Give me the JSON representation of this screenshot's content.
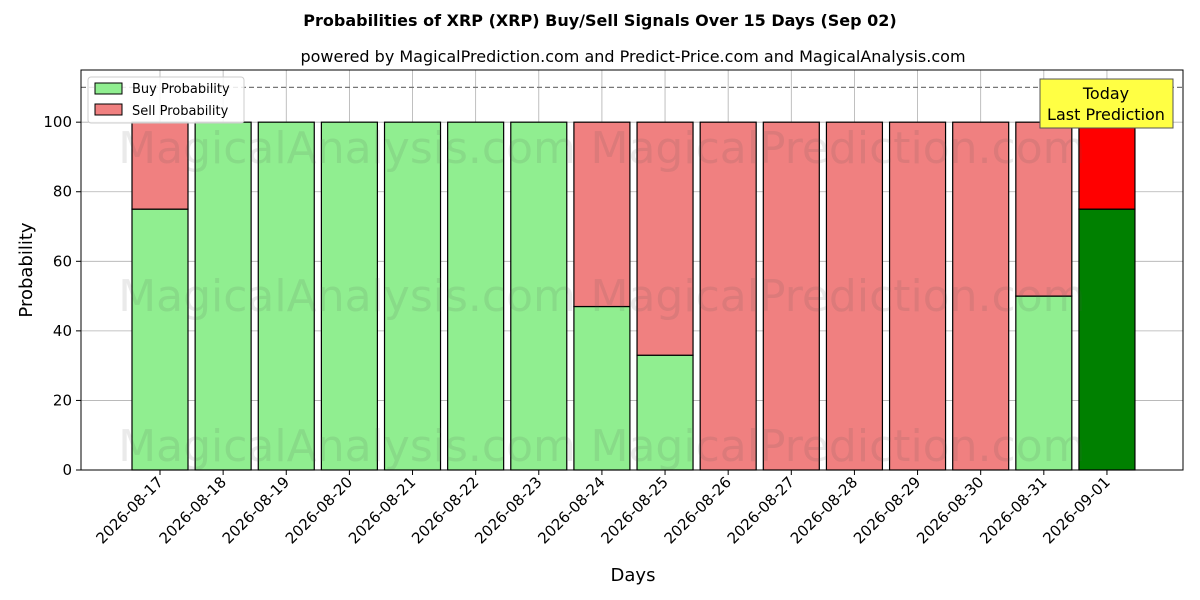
{
  "chart_data": {
    "type": "bar",
    "stacked": true,
    "title": "Probabilities of XRP (XRP) Buy/Sell Signals Over 15 Days (Sep 02)",
    "subtitle": "powered by MagicalPrediction.com and Predict-Price.com and MagicalAnalysis.com",
    "xlabel": "Days",
    "ylabel": "Probability",
    "ylim": [
      0,
      115
    ],
    "yticks": [
      0,
      20,
      40,
      60,
      80,
      100
    ],
    "reference_line": 110,
    "grid": true,
    "legend_position": "top-left",
    "categories": [
      "2026-08-17",
      "2026-08-18",
      "2026-08-19",
      "2026-08-20",
      "2026-08-21",
      "2026-08-22",
      "2026-08-23",
      "2026-08-24",
      "2026-08-25",
      "2026-08-26",
      "2026-08-27",
      "2026-08-28",
      "2026-08-29",
      "2026-08-30",
      "2026-08-31",
      "2026-09-01"
    ],
    "series": [
      {
        "name": "Buy Probability",
        "color": "#90ee90",
        "values": [
          75,
          100,
          100,
          100,
          100,
          100,
          100,
          47,
          33,
          0,
          0,
          0,
          0,
          0,
          50,
          75
        ]
      },
      {
        "name": "Sell Probability",
        "color": "#f08080",
        "values": [
          25,
          0,
          0,
          0,
          0,
          0,
          0,
          53,
          67,
          100,
          100,
          100,
          100,
          100,
          50,
          25
        ]
      }
    ],
    "highlight": {
      "index": 15,
      "buy_color": "#008000",
      "sell_color": "#ff0000"
    },
    "annotation": {
      "line1": "Today",
      "line2": "Last Prediction",
      "background": "#ffff44"
    },
    "watermarks": [
      "MagicalAnalysis.com",
      "MagicalPrediction.com"
    ]
  }
}
